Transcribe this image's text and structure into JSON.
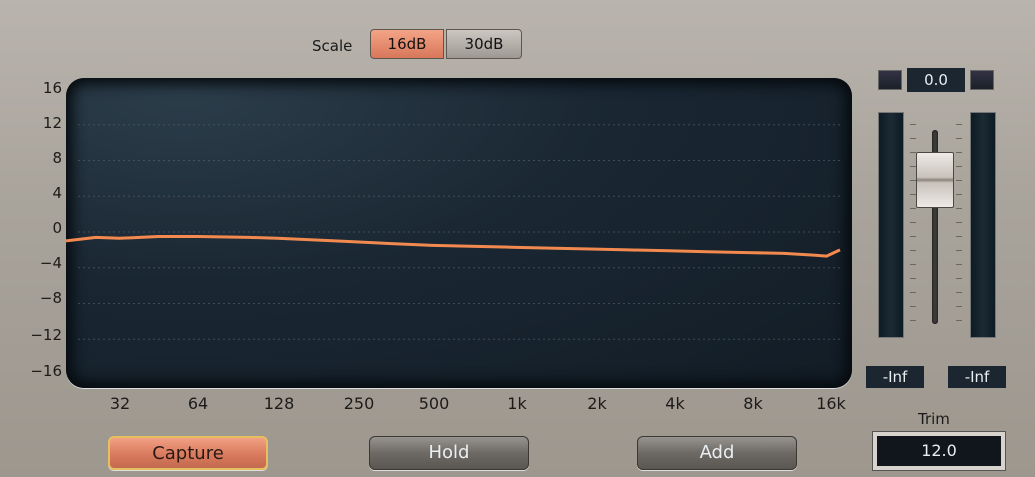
{
  "scale": {
    "label": "Scale",
    "options": [
      "16dB",
      "30dB"
    ],
    "selected": "16dB",
    "active_color": "#e88b6d"
  },
  "graph": {
    "y_ticks": [
      "16",
      "12",
      "8",
      "4",
      "0",
      "−4",
      "−8",
      "−12",
      "−16"
    ],
    "x_ticks": [
      "32",
      "64",
      "128",
      "250",
      "500",
      "1k",
      "2k",
      "4k",
      "8k",
      "16k"
    ],
    "curve_color": "#f28a4f",
    "background_color": "#1b2733"
  },
  "chart_data": {
    "type": "line",
    "xscale": "log",
    "ylim": [
      -16,
      16
    ],
    "xlim": [
      20,
      20000
    ],
    "grid": true,
    "series": [
      {
        "x": [
          20,
          26,
          32,
          45,
          64,
          100,
          128,
          180,
          250,
          350,
          500,
          700,
          1000,
          1400,
          2000,
          2800,
          4000,
          5600,
          8000,
          11000,
          14500,
          16000,
          18000
        ],
        "values": [
          -1.0,
          -0.6,
          -0.7,
          -0.5,
          -0.5,
          -0.6,
          -0.7,
          -0.9,
          -1.1,
          -1.3,
          -1.5,
          -1.6,
          -1.7,
          -1.8,
          -1.9,
          -2.0,
          -2.1,
          -2.2,
          -2.3,
          -2.4,
          -2.6,
          -2.7,
          -2.0
        ]
      }
    ]
  },
  "meter": {
    "peak_readout": "0.0",
    "left_readout": "-Inf",
    "right_readout": "-Inf"
  },
  "trim": {
    "label": "Trim",
    "value": "12.0"
  },
  "buttons": {
    "capture": "Capture",
    "hold": "Hold",
    "add": "Add"
  }
}
